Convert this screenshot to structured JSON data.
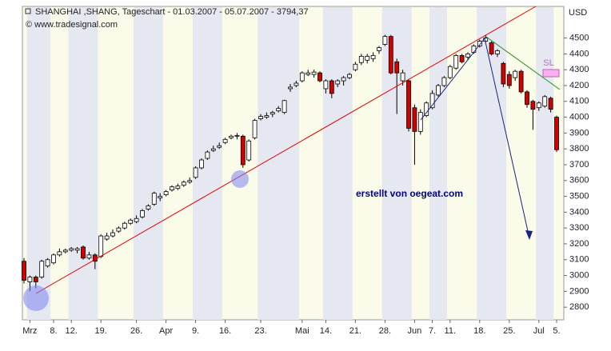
{
  "chart_data": {
    "type": "candlestick",
    "title": "SHANGHAI ,SHANG, Tageschart - 01.03.2007 - 05.07.2007 - 3794,37",
    "subtitle": "© www.tradesignal.com",
    "y_axis_label": "USD",
    "annotations": [
      "erstellt von oegeat.com",
      "SL"
    ],
    "categories": [
      null,
      "Mrz",
      null,
      null,
      null,
      "8.",
      null,
      null,
      "12.",
      null,
      null,
      null,
      null,
      "19.",
      null,
      null,
      null,
      null,
      null,
      "26.",
      null,
      null,
      null,
      null,
      "Apr",
      null,
      null,
      null,
      null,
      "9.",
      null,
      null,
      null,
      null,
      "16.",
      null,
      null,
      null,
      null,
      null,
      "23.",
      null,
      null,
      null,
      null,
      null,
      null,
      "Mai",
      null,
      null,
      null,
      "14.",
      null,
      null,
      null,
      null,
      "21.",
      null,
      null,
      null,
      null,
      "28.",
      null,
      null,
      null,
      null,
      "Jun",
      null,
      null,
      "7.",
      null,
      null,
      "11.",
      null,
      null,
      null,
      null,
      "18.",
      null,
      null,
      null,
      null,
      "25.",
      null,
      null,
      null,
      null,
      "Jul",
      null,
      null,
      "5."
    ],
    "open": [
      3090,
      2960,
      2990,
      2990,
      3060,
      3080,
      3130,
      3150,
      3160,
      3160,
      3180,
      3110,
      3130,
      3120,
      3230,
      3250,
      3280,
      3300,
      3330,
      3340,
      3370,
      3420,
      3450,
      3490,
      3510,
      3540,
      3550,
      3570,
      3590,
      3620,
      3680,
      3740,
      3790,
      3810,
      3840,
      3870,
      3880,
      3880,
      3730,
      3870,
      3990,
      4000,
      4020,
      4040,
      4030,
      4180,
      4200,
      4230,
      4270,
      4270,
      4280,
      4180,
      4230,
      4210,
      4230,
      4250,
      4300,
      4345,
      4360,
      4370,
      4420,
      4460,
      4510,
      4350,
      4230,
      4230,
      4060,
      3910,
      4010,
      4060,
      4140,
      4200,
      4250,
      4310,
      4390,
      4380,
      4410,
      4450,
      4480,
      4470,
      4400,
      4340,
      4270,
      4250,
      4290,
      4160,
      4100,
      4060,
      4070,
      4120,
      4000
    ],
    "high": [
      3110,
      3000,
      3000,
      3100,
      3110,
      3140,
      3170,
      3170,
      3180,
      3180,
      3190,
      3150,
      3140,
      3260,
      3270,
      3290,
      3310,
      3340,
      3360,
      3380,
      3420,
      3450,
      3530,
      3520,
      3540,
      3570,
      3580,
      3600,
      3620,
      3690,
      3740,
      3790,
      3820,
      3840,
      3870,
      3890,
      3900,
      3890,
      3860,
      3990,
      4020,
      4030,
      4040,
      4070,
      4110,
      4210,
      4230,
      4290,
      4300,
      4300,
      4290,
      4240,
      4240,
      4240,
      4260,
      4280,
      4350,
      4400,
      4400,
      4410,
      4450,
      4520,
      4520,
      4370,
      4300,
      4240,
      4080,
      4050,
      4100,
      4170,
      4210,
      4260,
      4330,
      4400,
      4400,
      4410,
      4460,
      4490,
      4520,
      4480,
      4430,
      4350,
      4290,
      4300,
      4300,
      4170,
      4110,
      4100,
      4140,
      4130,
      4010
    ],
    "low": [
      2950,
      2900,
      2920,
      2980,
      3050,
      3070,
      3120,
      3140,
      3150,
      3140,
      3100,
      3100,
      3040,
      3110,
      3220,
      3240,
      3270,
      3290,
      3320,
      3330,
      3360,
      3410,
      3440,
      3470,
      3500,
      3530,
      3540,
      3560,
      3580,
      3610,
      3670,
      3730,
      3780,
      3800,
      3830,
      3860,
      3860,
      3680,
      3720,
      3860,
      3980,
      3990,
      4000,
      4030,
      4020,
      4160,
      4190,
      4220,
      4260,
      4250,
      4220,
      4150,
      4120,
      4190,
      4200,
      4240,
      4290,
      4330,
      4340,
      4350,
      4400,
      4450,
      4270,
      4020,
      4200,
      3910,
      3700,
      3890,
      4000,
      4050,
      4130,
      4190,
      4240,
      4300,
      4340,
      4360,
      4400,
      4440,
      4470,
      4390,
      4380,
      4190,
      4180,
      4230,
      4150,
      4060,
      3920,
      4040,
      4060,
      4030,
      3780
    ],
    "close": [
      2970,
      2990,
      2960,
      3090,
      3100,
      3130,
      3150,
      3160,
      3170,
      3170,
      3110,
      3130,
      3090,
      3250,
      3250,
      3270,
      3300,
      3330,
      3350,
      3360,
      3410,
      3440,
      3520,
      3500,
      3530,
      3560,
      3565,
      3590,
      3600,
      3680,
      3730,
      3780,
      3800,
      3820,
      3860,
      3880,
      3885,
      3700,
      3850,
      3980,
      4005,
      4010,
      4030,
      4055,
      4105,
      4190,
      4215,
      4280,
      4280,
      4285,
      4230,
      4230,
      4150,
      4230,
      4250,
      4270,
      4335,
      4385,
      4385,
      4390,
      4440,
      4510,
      4280,
      4280,
      4280,
      3930,
      3910,
      4030,
      4090,
      4150,
      4200,
      4250,
      4320,
      4390,
      4350,
      4400,
      4450,
      4480,
      4500,
      4400,
      4420,
      4210,
      4200,
      4290,
      4160,
      4080,
      4050,
      4090,
      4130,
      4050,
      3794.37
    ],
    "up_color": "#ffffff",
    "down_color": "#d40000",
    "ylim": [
      2720,
      4700
    ],
    "yticks": [
      2800,
      2900,
      3000,
      3100,
      3200,
      3300,
      3400,
      3500,
      3600,
      3700,
      3800,
      3900,
      4000,
      4100,
      4200,
      4300,
      4400,
      4500
    ]
  }
}
